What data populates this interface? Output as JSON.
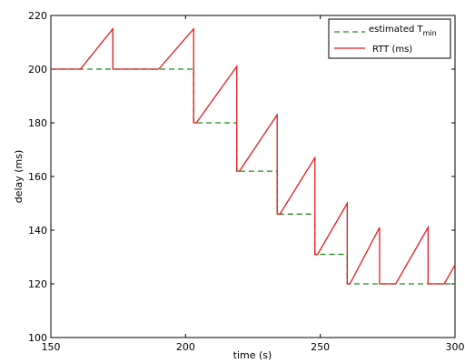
{
  "chart_data": {
    "type": "line",
    "xlabel": "time (s)",
    "ylabel": "delay (ms)",
    "xlim": [
      150,
      300
    ],
    "ylim": [
      100,
      220
    ],
    "xticks": [
      "150",
      "200",
      "250",
      "300"
    ],
    "yticks": [
      "100",
      "120",
      "140",
      "160",
      "180",
      "200",
      "220"
    ],
    "grid": false,
    "legend_position": "top-right",
    "legend": {
      "tmin_label": "estimated T",
      "tmin_subscript": "min",
      "rtt_label": "RTT (ms)"
    },
    "series": [
      {
        "id": "tmin",
        "color": "#1f8a1f",
        "style": "dashed",
        "x": [
          150,
          203,
          203,
          219,
          219,
          234,
          234,
          248,
          248,
          260,
          260,
          300
        ],
        "y": [
          200,
          200,
          180,
          180,
          162,
          162,
          146,
          146,
          131,
          131,
          120,
          120
        ]
      },
      {
        "id": "rtt",
        "color": "#e31a1c",
        "style": "solid",
        "x": [
          150,
          161,
          173,
          173,
          190,
          203,
          203,
          204,
          219,
          219,
          220,
          234,
          234,
          235,
          248,
          248,
          249,
          260,
          260,
          261,
          272,
          272,
          278,
          290,
          290,
          296,
          300
        ],
        "y": [
          200,
          200,
          215,
          200,
          200,
          215,
          180,
          180,
          201,
          162,
          162,
          183,
          146,
          146,
          167,
          131,
          131,
          150,
          120,
          120,
          141,
          120,
          120,
          141,
          120,
          120,
          127
        ]
      }
    ]
  }
}
